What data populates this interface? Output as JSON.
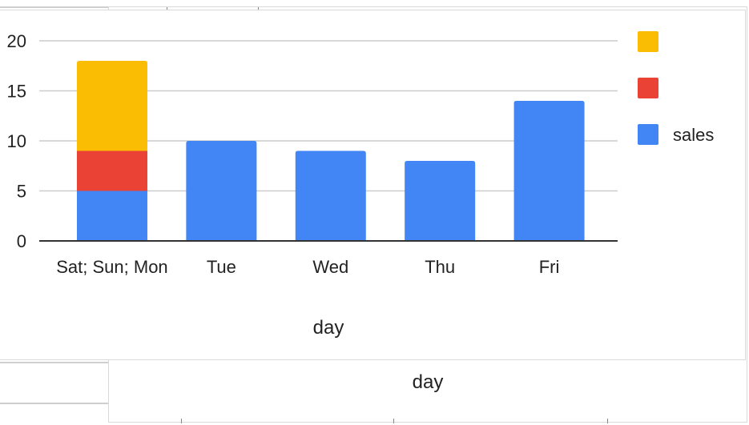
{
  "chart_data": {
    "type": "bar",
    "stacked": true,
    "categories": [
      "Sat; Sun; Mon",
      "Tue",
      "Wed",
      "Thu",
      "Fri"
    ],
    "series": [
      {
        "name": "sales",
        "color": "#4285F4",
        "values": [
          5,
          10,
          9,
          8,
          14
        ]
      },
      {
        "name": "",
        "color": "#EA4335",
        "values": [
          4,
          null,
          null,
          null,
          null
        ]
      },
      {
        "name": "",
        "color": "#FBBC04",
        "values": [
          9,
          null,
          null,
          null,
          null
        ]
      }
    ],
    "xlabel": "day",
    "ylabel": "",
    "ylim": [
      0,
      20
    ],
    "yticks": [
      0,
      5,
      10,
      15,
      20
    ],
    "grid": true,
    "legend": "right"
  },
  "background_chart": {
    "xlabel": "day"
  }
}
